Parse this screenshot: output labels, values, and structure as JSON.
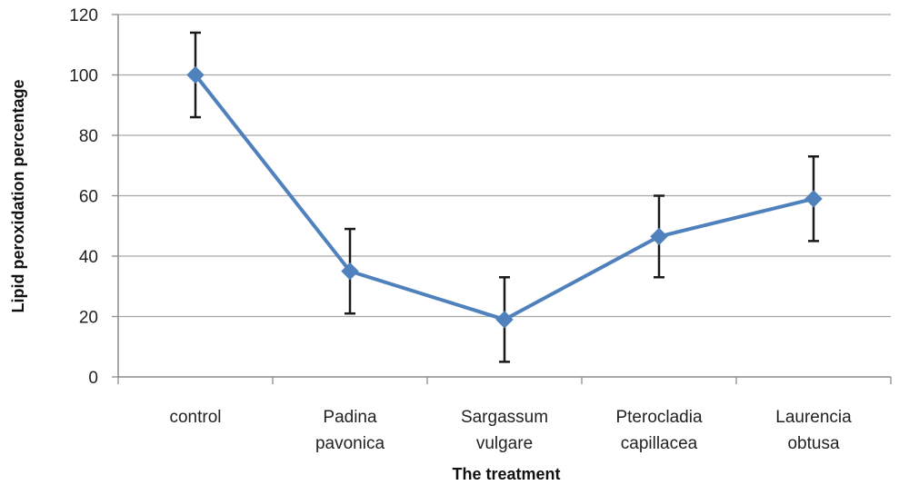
{
  "chart_data": {
    "type": "line",
    "title": "",
    "xlabel": "The treatment",
    "ylabel": "Lipid peroxidation percentage",
    "categories": [
      [
        "control"
      ],
      [
        "Padina",
        "pavonica"
      ],
      [
        "Sargassum",
        "vulgare"
      ],
      [
        "Pterocladia",
        "capillacea"
      ],
      [
        "Laurencia",
        "obtusa"
      ]
    ],
    "series": [
      {
        "values": [
          100,
          35,
          19,
          46.5,
          59
        ],
        "error": [
          14,
          14,
          14,
          13.5,
          14
        ],
        "color": "#4f81bd"
      }
    ],
    "ylim": [
      0,
      120
    ],
    "yticks": [
      0,
      20,
      40,
      60,
      80,
      100,
      120
    ],
    "grid": true,
    "legend": "none"
  }
}
